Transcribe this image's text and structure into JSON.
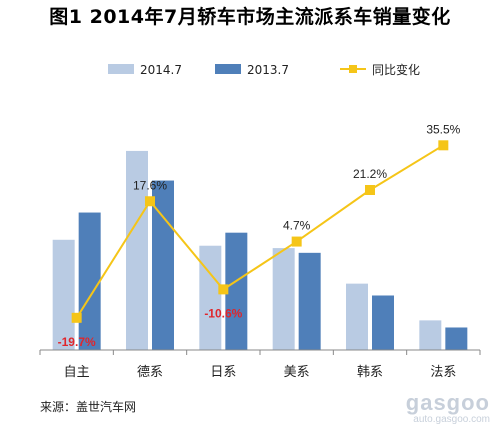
{
  "title": "图1  2014年7月轿车市场主流派系车销量变化",
  "source": "来源：盖世汽车网",
  "watermark": {
    "logo_text": "gasgoo",
    "url": "auto.gasgoo.com"
  },
  "colors": {
    "series_2014": "#b9cbe3",
    "series_2013": "#4f7fb9",
    "line": "#f5c518",
    "positive_label": "#222222",
    "negative_label": "#e0262b"
  },
  "chart_data": {
    "type": "bar",
    "title": "图1  2014年7月轿车市场主流派系车销量变化",
    "categories": [
      "自主",
      "德系",
      "日系",
      "美系",
      "韩系",
      "法系"
    ],
    "series": [
      {
        "name": "2014.7",
        "type": "bar",
        "values": [
          93,
          168,
          88,
          86,
          56,
          25
        ]
      },
      {
        "name": "2013.7",
        "type": "bar",
        "values": [
          116,
          143,
          99,
          82,
          46,
          19
        ]
      },
      {
        "name": "同比变化",
        "type": "line",
        "values": [
          -19.7,
          17.6,
          -10.6,
          4.7,
          21.2,
          35.5
        ],
        "labels": [
          "-19.7%",
          "17.6%",
          "-10.6%",
          "4.7%",
          "21.2%",
          "35.5%"
        ]
      }
    ],
    "ylim_bars": [
      0,
      200
    ],
    "ylim_line": [
      -30,
      50
    ],
    "grid": false,
    "legend": "top",
    "axes_visible": "x-only"
  }
}
